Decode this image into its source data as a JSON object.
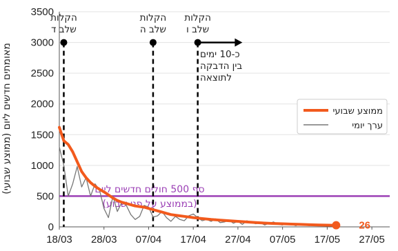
{
  "chart_data": {
    "type": "line",
    "ylabel": "מאומתים חדשים ליום (ממוצע שבועי)",
    "ylim": [
      0,
      3500
    ],
    "y_ticks": [
      "0",
      "500",
      "1000",
      "1500",
      "2000",
      "2500",
      "3000",
      "3500"
    ],
    "x_tick_labels": [
      "18/03",
      "28/03",
      "07/04",
      "17/04",
      "27/04",
      "07/05",
      "17/05",
      "27/05"
    ],
    "x_range_days": [
      0,
      74
    ],
    "series": [
      {
        "name": "ממוצע שבועי",
        "color": "#f25a1d",
        "x": [
          0,
          1,
          2,
          3,
          4,
          5,
          6,
          7,
          8,
          9,
          10,
          11,
          12,
          13,
          14,
          15,
          16,
          17,
          18,
          19,
          20,
          21,
          22,
          23,
          24,
          25,
          26,
          27,
          28,
          29,
          30,
          32,
          34,
          36,
          38,
          40,
          42,
          44,
          46,
          48,
          50,
          52,
          54,
          56,
          58,
          60,
          62
        ],
        "y": [
          1620,
          1400,
          1340,
          1220,
          1060,
          900,
          800,
          720,
          660,
          610,
          570,
          520,
          470,
          430,
          400,
          380,
          360,
          340,
          330,
          320,
          300,
          280,
          260,
          240,
          220,
          200,
          190,
          180,
          170,
          160,
          150,
          135,
          120,
          110,
          100,
          90,
          80,
          70,
          62,
          55,
          50,
          45,
          40,
          35,
          30,
          28,
          26
        ]
      },
      {
        "name": "ערך יומי",
        "color": "#777777",
        "x": [
          0,
          1,
          2,
          3,
          4,
          5,
          6,
          7,
          8,
          9,
          10,
          11,
          12,
          13,
          14,
          15,
          16,
          17,
          18,
          19,
          20,
          21,
          22,
          23,
          24,
          25,
          26,
          27,
          28,
          29,
          30,
          31,
          32,
          33,
          34,
          35,
          36,
          37,
          38,
          39,
          40,
          41,
          42,
          43,
          44,
          45,
          46,
          47,
          48,
          49,
          50,
          51,
          52,
          53,
          54,
          55,
          56,
          57,
          58,
          59,
          60,
          61,
          62
        ],
        "y": [
          1300,
          1000,
          500,
          700,
          980,
          650,
          800,
          500,
          700,
          600,
          300,
          150,
          500,
          250,
          400,
          350,
          200,
          120,
          170,
          350,
          320,
          160,
          180,
          250,
          150,
          90,
          170,
          120,
          100,
          180,
          210,
          150,
          100,
          120,
          90,
          130,
          70,
          80,
          110,
          60,
          90,
          40,
          100,
          70,
          50,
          70,
          30,
          60,
          80,
          40,
          30,
          60,
          40,
          20,
          50,
          30,
          20,
          40,
          30,
          25,
          20,
          30,
          20
        ]
      }
    ],
    "events": [
      {
        "day": 1,
        "y": 3000,
        "label_line1": "הקלות",
        "label_line2": "שלב ד"
      },
      {
        "day": 21,
        "y": 3000,
        "label_line1": "הקלות",
        "label_line2": "שלב ה"
      },
      {
        "day": 31,
        "y": 3000,
        "label_line1": "הקלות",
        "label_line2": "שלב ו"
      }
    ],
    "arrow_annotation": {
      "from_day": 31,
      "to_day": 41,
      "y": 3000,
      "lines": [
        "כ-10 ימים",
        "בין הדבקה",
        "לתוצאה"
      ]
    },
    "threshold": {
      "value": 500,
      "color": "#9b3fb5",
      "line1": "סף 500 חולים חדשים ליום",
      "line2": "(בממוצע על פני שבוע)"
    },
    "end_label": {
      "day": 62,
      "value": "26",
      "y": 26
    },
    "legend": {
      "position": "right",
      "items": [
        {
          "label": "ממוצע שבועי",
          "color": "#f25a1d"
        },
        {
          "label": "ערך יומי",
          "color": "#777777"
        }
      ]
    }
  }
}
